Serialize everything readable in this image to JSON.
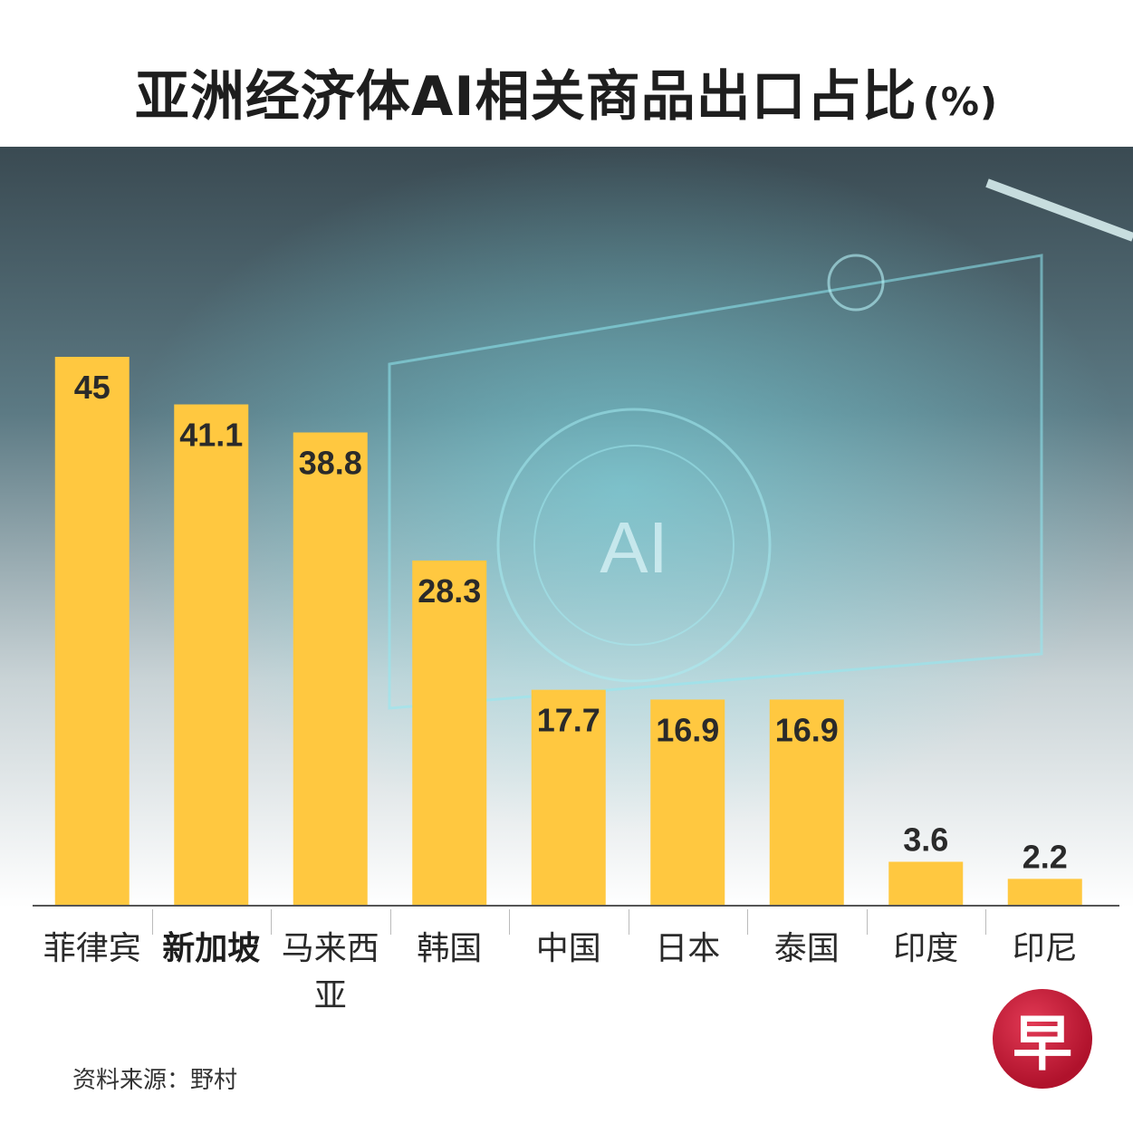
{
  "title": "亚洲经济体AI相关商品出口占比",
  "title_unit": "(%)",
  "background": {
    "center_text": "AI"
  },
  "source": "资料来源：野村",
  "logo": {
    "text": "早"
  },
  "colors": {
    "bar": "#ffc840",
    "highlight_label": "#1e1e1e",
    "label": "#2a2a2a",
    "logo": "#c41a36"
  },
  "chart_data": {
    "type": "bar",
    "categories": [
      "菲律宾",
      "新加坡",
      "马来西亚",
      "韩国",
      "中国",
      "日本",
      "泰国",
      "印度",
      "印尼"
    ],
    "values": [
      45,
      41.1,
      38.8,
      28.3,
      17.7,
      16.9,
      16.9,
      3.6,
      2.2
    ],
    "value_labels": [
      "45",
      "41.1",
      "38.8",
      "28.3",
      "17.7",
      "16.9",
      "16.9",
      "3.6",
      "2.2"
    ],
    "highlight_category": "新加坡",
    "ylim": [
      0,
      45
    ],
    "grid": false,
    "legend": "none"
  }
}
